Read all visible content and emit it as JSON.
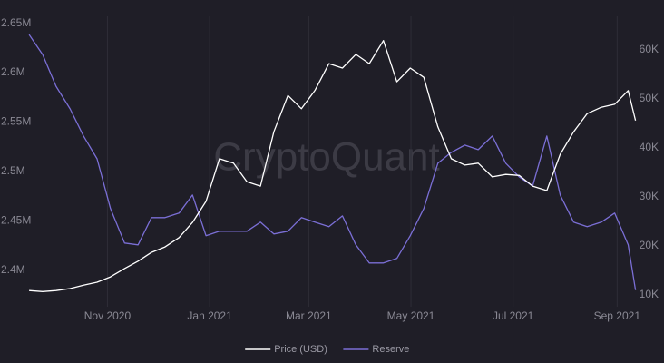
{
  "chart_data": {
    "type": "line",
    "watermark": "CryptoQuant",
    "x": [
      2020.705,
      2020.727,
      2020.749,
      2020.772,
      2020.794,
      2020.816,
      2020.838,
      2020.861,
      2020.883,
      2020.905,
      2020.927,
      2020.95,
      2020.972,
      2020.994,
      2021.016,
      2021.039,
      2021.061,
      2021.083,
      2021.105,
      2021.128,
      2021.15,
      2021.172,
      2021.195,
      2021.217,
      2021.239,
      2021.261,
      2021.284,
      2021.306,
      2021.328,
      2021.35,
      2021.373,
      2021.395,
      2021.417,
      2021.439,
      2021.462,
      2021.484,
      2021.506,
      2021.528,
      2021.551,
      2021.573,
      2021.595,
      2021.617,
      2021.64,
      2021.662,
      2021.684,
      2021.696
    ],
    "series": [
      {
        "name": "Price (USD)",
        "color": "#ffffff",
        "axis": "y2",
        "values": [
          10900,
          10700,
          10900,
          11300,
          12000,
          12600,
          13700,
          15400,
          16900,
          18700,
          19800,
          21700,
          24800,
          29100,
          37800,
          36900,
          33100,
          32200,
          43300,
          50700,
          48000,
          51700,
          57200,
          56300,
          59100,
          57200,
          61900,
          53500,
          56300,
          54400,
          44300,
          37800,
          36500,
          36900,
          34100,
          34600,
          34400,
          32200,
          31300,
          38700,
          43300,
          47000,
          48300,
          48900,
          51700,
          45600
        ]
      },
      {
        "name": "Reserve",
        "color": "#7b6fd6",
        "values": [
          2638500,
          2618300,
          2586200,
          2563300,
          2535800,
          2512800,
          2462400,
          2427500,
          2425700,
          2453200,
          2453200,
          2457800,
          2476100,
          2434900,
          2439400,
          2439400,
          2439400,
          2448600,
          2436700,
          2439400,
          2453200,
          2448600,
          2444000,
          2455000,
          2425700,
          2407300,
          2407300,
          2411900,
          2434900,
          2462400,
          2508300,
          2519300,
          2526600,
          2522000,
          2535800,
          2508300,
          2494500,
          2485300,
          2535800,
          2476100,
          2448600,
          2444000,
          2448600,
          2457800,
          2425700,
          2379800
        ]
      }
    ],
    "xlim": [
      2020.69,
      2021.71
    ],
    "xticks": [
      {
        "value": 2020.833,
        "label": "Nov 2020"
      },
      {
        "value": 2021.0,
        "label": "Jan 2021"
      },
      {
        "value": 2021.162,
        "label": "Mar 2021"
      },
      {
        "value": 2021.329,
        "label": "May 2021"
      },
      {
        "value": 2021.496,
        "label": "Jul 2021"
      },
      {
        "value": 2021.666,
        "label": "Sep 2021"
      }
    ],
    "ylim": [
      2363000,
      2657000
    ],
    "yticks": [
      {
        "value": 2400000,
        "label": "2.4M"
      },
      {
        "value": 2450000,
        "label": "2.45M"
      },
      {
        "value": 2500000,
        "label": "2.5M"
      },
      {
        "value": 2550000,
        "label": "2.55M"
      },
      {
        "value": 2600000,
        "label": "2.6M"
      },
      {
        "value": 2650000,
        "label": "2.65M"
      }
    ],
    "y2lim": [
      7600,
      66850
    ],
    "y2ticks": [
      {
        "value": 10000,
        "label": "10K"
      },
      {
        "value": 20000,
        "label": "20K"
      },
      {
        "value": 30000,
        "label": "30K"
      },
      {
        "value": 40000,
        "label": "40K"
      },
      {
        "value": 50000,
        "label": "50K"
      },
      {
        "value": 60000,
        "label": "60K"
      }
    ],
    "grid": "x",
    "legend": "bottom"
  }
}
